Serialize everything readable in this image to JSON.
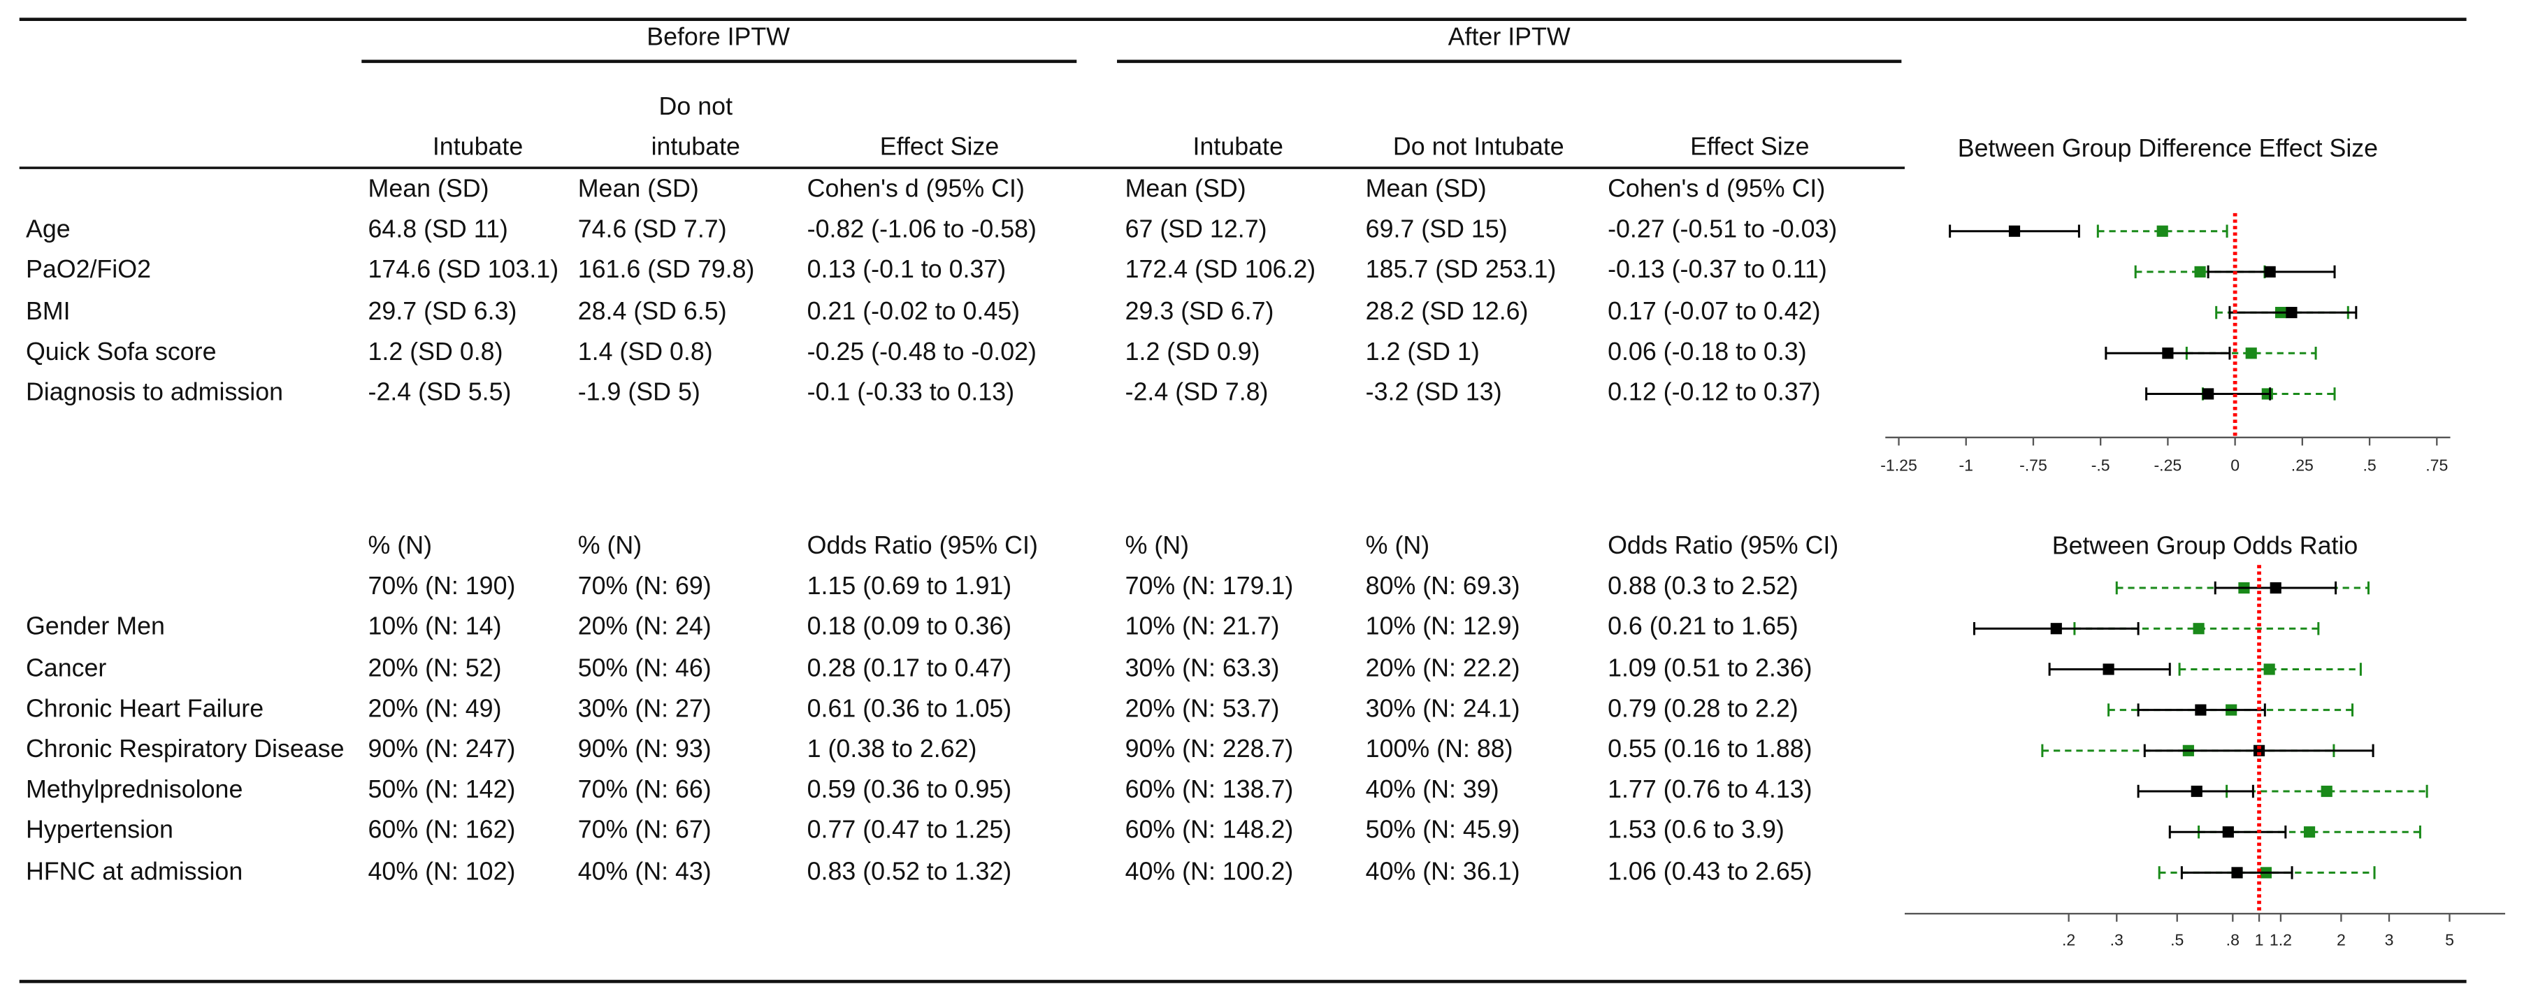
{
  "table": {
    "group_headers": [
      "Before IPTW",
      "After IPTW"
    ],
    "column_headers": [
      "Intubate",
      "Do not intubate",
      "Effect Size",
      "Intubate",
      "Do not Intubate",
      "Effect Size"
    ],
    "sections": [
      {
        "subheaders": [
          "Mean (SD)",
          "Mean (SD)",
          "Cohen's d (95% CI)",
          "Mean (SD)",
          "Mean (SD)",
          "Cohen's d (95% CI)"
        ],
        "rows": [
          {
            "label": "Age",
            "cells": [
              "64.8 (SD 11)",
              "74.6 (SD 7.7)",
              "-0.82 (-1.06 to -0.58)",
              "67 (SD 12.7)",
              "69.7 (SD 15)",
              "-0.27 (-0.51 to -0.03)"
            ]
          },
          {
            "label": "PaO2/FiO2",
            "cells": [
              "174.6 (SD 103.1)",
              "161.6 (SD 79.8)",
              "0.13 (-0.1 to 0.37)",
              "172.4 (SD 106.2)",
              "185.7 (SD 253.1)",
              "-0.13 (-0.37 to 0.11)"
            ]
          },
          {
            "label": "BMI",
            "cells": [
              "29.7 (SD 6.3)",
              "28.4 (SD 6.5)",
              "0.21 (-0.02 to 0.45)",
              "29.3 (SD 6.7)",
              "28.2 (SD 12.6)",
              "0.17 (-0.07 to 0.42)"
            ]
          },
          {
            "label": "Quick Sofa score",
            "cells": [
              "1.2 (SD 0.8)",
              "1.4 (SD 0.8)",
              "-0.25 (-0.48 to -0.02)",
              "1.2 (SD 0.9)",
              "1.2 (SD 1)",
              "0.06 (-0.18 to 0.3)"
            ]
          },
          {
            "label": "Diagnosis to admission",
            "cells": [
              "-2.4 (SD 5.5)",
              "-1.9 (SD 5)",
              "-0.1 (-0.33 to 0.13)",
              "-2.4 (SD 7.8)",
              "-3.2 (SD 13)",
              "0.12 (-0.12 to 0.37)"
            ]
          }
        ]
      },
      {
        "subheaders": [
          "% (N)",
          "% (N)",
          "Odds Ratio (95% CI)",
          "% (N)",
          "% (N)",
          "Odds Ratio (95% CI)"
        ],
        "rows": [
          {
            "label": null,
            "cells": [
              "70% (N: 190)",
              "70% (N: 69)",
              "1.15 (0.69 to 1.91)",
              "70% (N: 179.1)",
              "80% (N: 69.3)",
              "0.88 (0.3 to 2.52)"
            ]
          },
          {
            "label": "Gender Men",
            "cells": [
              "10% (N: 14)",
              "20% (N: 24)",
              "0.18 (0.09 to 0.36)",
              "10% (N: 21.7)",
              "10% (N: 12.9)",
              "0.6 (0.21 to 1.65)"
            ]
          },
          {
            "label": "Cancer",
            "cells": [
              "20% (N: 52)",
              "50% (N: 46)",
              "0.28 (0.17 to 0.47)",
              "30% (N: 63.3)",
              "20% (N: 22.2)",
              "1.09 (0.51 to 2.36)"
            ]
          },
          {
            "label": "Chronic Heart Failure",
            "cells": [
              "20% (N: 49)",
              "30% (N: 27)",
              "0.61 (0.36 to 1.05)",
              "20% (N: 53.7)",
              "30% (N: 24.1)",
              "0.79 (0.28 to 2.2)"
            ]
          },
          {
            "label": "Chronic Respiratory Disease",
            "cells": [
              "90% (N: 247)",
              "90% (N: 93)",
              "1 (0.38 to 2.62)",
              "90% (N: 228.7)",
              "100% (N: 88)",
              "0.55 (0.16 to 1.88)"
            ]
          },
          {
            "label": "Methylprednisolone",
            "cells": [
              "50% (N: 142)",
              "70% (N: 66)",
              "0.59 (0.36 to 0.95)",
              "60% (N: 138.7)",
              "40% (N: 39)",
              "1.77 (0.76 to 4.13)"
            ]
          },
          {
            "label": "Hypertension",
            "cells": [
              "60% (N: 162)",
              "70% (N: 67)",
              "0.77 (0.47 to 1.25)",
              "60% (N: 148.2)",
              "50% (N: 45.9)",
              "1.53 (0.6 to 3.9)"
            ]
          },
          {
            "label": "HFNC at admission",
            "cells": [
              "40% (N: 102)",
              "40% (N: 43)",
              "0.83 (0.52 to 1.32)",
              "40% (N: 100.2)",
              "40% (N: 36.1)",
              "1.06 (0.43 to 2.65)"
            ]
          }
        ]
      }
    ]
  },
  "plots": [
    {
      "title": "Between Group Difference Effect Size",
      "log": false,
      "xlim": [
        -1.3,
        0.8
      ],
      "xticks": [
        {
          "value": -1.25,
          "label": "-1.25"
        },
        -1,
        {
          "value": -0.75,
          "label": "-.75"
        },
        {
          "value": -0.5,
          "label": "-.5"
        },
        {
          "value": -0.25,
          "label": "-.25"
        },
        0,
        {
          "value": 0.25,
          "label": ".25"
        },
        {
          "value": 0.5,
          "label": ".5"
        },
        {
          "value": 0.75,
          "label": ".75"
        }
      ],
      "reference": 0,
      "reference_color": "#ff0000",
      "before": {
        "color": "#000000",
        "line_style": "solid",
        "estimates": [
          -0.82,
          0.13,
          0.21,
          -0.25,
          -0.1
        ],
        "lower": [
          -1.06,
          -0.1,
          -0.02,
          -0.48,
          -0.33
        ],
        "upper": [
          -0.58,
          0.37,
          0.45,
          -0.02,
          0.13
        ]
      },
      "after": {
        "color": "#1a8a1a",
        "line_style": "dashed",
        "estimates": [
          -0.27,
          -0.13,
          0.17,
          0.06,
          0.12
        ],
        "lower": [
          -0.51,
          -0.37,
          -0.07,
          -0.18,
          -0.12
        ],
        "upper": [
          -0.03,
          0.11,
          0.42,
          0.3,
          0.37
        ]
      }
    },
    {
      "title": "Between Group Odds Ratio",
      "log": true,
      "xlim": [
        0.05,
        8
      ],
      "xticks": [
        {
          "value": 0.2,
          "label": ".2"
        },
        {
          "value": 0.3,
          "label": ".3"
        },
        {
          "value": 0.5,
          "label": ".5"
        },
        {
          "value": 0.8,
          "label": ".8"
        },
        1,
        1.2,
        2,
        3,
        5
      ],
      "reference": 1,
      "reference_color": "#ff0000",
      "before": {
        "color": "#000000",
        "line_style": "solid",
        "estimates": [
          1.15,
          0.18,
          0.28,
          0.61,
          1,
          0.59,
          0.77,
          0.83
        ],
        "lower": [
          0.69,
          0.09,
          0.17,
          0.36,
          0.38,
          0.36,
          0.47,
          0.52
        ],
        "upper": [
          1.91,
          0.36,
          0.47,
          1.05,
          2.62,
          0.95,
          1.25,
          1.32
        ]
      },
      "after": {
        "color": "#1a8a1a",
        "line_style": "dashed",
        "estimates": [
          0.88,
          0.6,
          1.09,
          0.79,
          0.55,
          1.77,
          1.53,
          1.06
        ],
        "lower": [
          0.3,
          0.21,
          0.51,
          0.28,
          0.16,
          0.76,
          0.6,
          0.43
        ],
        "upper": [
          2.52,
          1.65,
          2.36,
          2.2,
          1.88,
          4.13,
          3.9,
          2.65
        ]
      }
    }
  ]
}
